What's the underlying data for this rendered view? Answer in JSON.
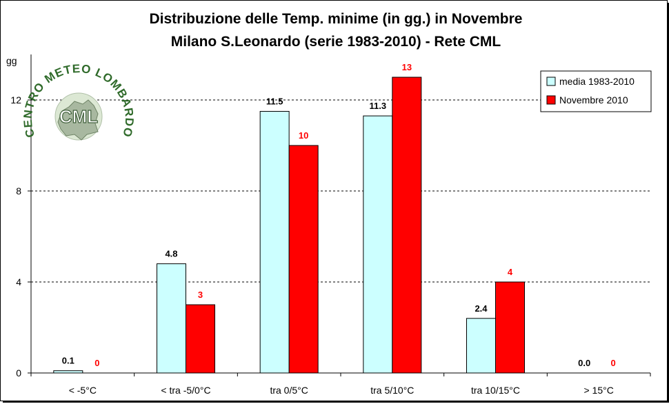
{
  "chart_data": {
    "type": "bar",
    "title": "Distribuzione delle Temp. minime (in gg.) in Novembre",
    "subtitle": "Milano S.Leonardo (serie 1983-2010) - Rete CML",
    "ylabel": "gg",
    "xlabel": "",
    "ylim": [
      0,
      14
    ],
    "yticks": [
      0,
      4,
      8,
      12
    ],
    "grid": "horizontal-dashed",
    "legend_position": "top-right",
    "categories": [
      "< -5°C",
      "< tra -5/0°C",
      "tra 0/5°C",
      "tra 5/10°C",
      "tra 10/15°C",
      "> 15°C"
    ],
    "series": [
      {
        "name": "media 1983-2010",
        "color": "#ccffff",
        "values": [
          0.1,
          4.8,
          11.5,
          11.3,
          2.4,
          0.0
        ],
        "labels": [
          "0.1",
          "4.8",
          "11.5",
          "11.3",
          "2.4",
          "0.0"
        ],
        "label_color": "#000000"
      },
      {
        "name": "Novembre 2010",
        "color": "#ff0000",
        "values": [
          0,
          3,
          10,
          13,
          4,
          0
        ],
        "labels": [
          "0",
          "3",
          "10",
          "13",
          "4",
          "0"
        ],
        "label_color": "#ff0000"
      }
    ]
  },
  "logo": {
    "arc_text": "CENTRO METEO LOMBARDO",
    "center_text": "CML"
  }
}
